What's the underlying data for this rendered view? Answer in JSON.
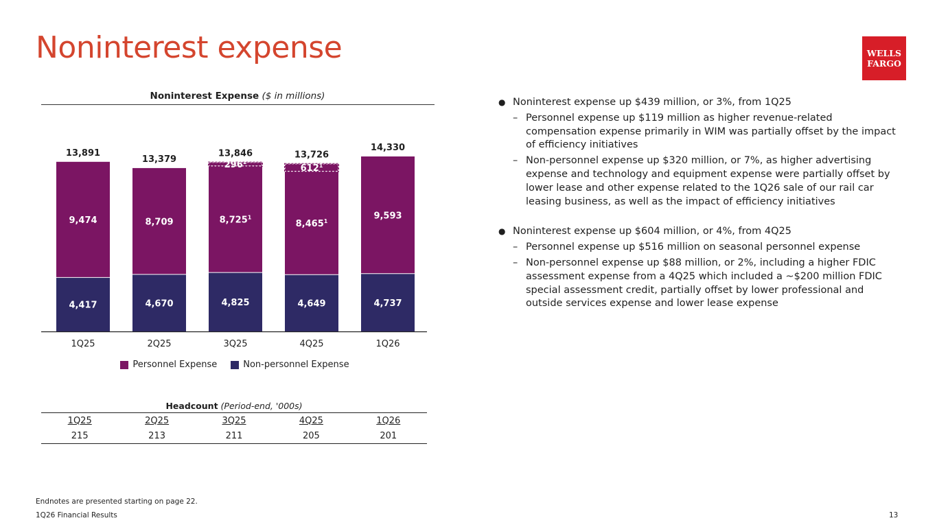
{
  "page": {
    "title": "Noninterest expense",
    "logo_line1": "WELLS",
    "logo_line2": "FARGO",
    "footnote": "Endnotes are presented starting on page 22.",
    "footer_left": "1Q26 Financial Results",
    "page_number": "13"
  },
  "colors": {
    "title": "#d4452e",
    "brand_red": "#d71e28",
    "personnel": "#7b1563",
    "nonpersonnel": "#2e2a65"
  },
  "chart_title_bold": "Noninterest Expense",
  "chart_title_italic": "($ in millions)",
  "chart_data": {
    "type": "bar",
    "stacked": true,
    "title": "Noninterest Expense ($ in millions)",
    "categories": [
      "1Q25",
      "2Q25",
      "3Q25",
      "4Q25",
      "1Q26"
    ],
    "series": [
      {
        "name": "Non-personnel Expense",
        "values": [
          4417,
          4670,
          4825,
          4649,
          4737
        ],
        "labels": [
          "4,417",
          "4,670",
          "4,825",
          "4,649",
          "4,737"
        ]
      },
      {
        "name": "Personnel Expense",
        "values": [
          9474,
          8709,
          8725,
          8465,
          9593
        ],
        "labels": [
          "9,474",
          "8,709",
          "8,725",
          "8,465",
          "9,593"
        ],
        "footnotes": [
          "",
          "",
          "1",
          "1",
          ""
        ]
      },
      {
        "name": "Dashed segment",
        "values": [
          0,
          0,
          296,
          612,
          0
        ],
        "labels": [
          "",
          "",
          "296",
          "612",
          ""
        ],
        "footnotes": [
          "",
          "",
          "1",
          "1",
          ""
        ]
      }
    ],
    "totals": [
      "13,891",
      "13,379",
      "13,846",
      "13,726",
      "14,330"
    ],
    "legend": [
      "Personnel Expense",
      "Non-personnel Expense"
    ],
    "ylim": [
      0,
      14330
    ]
  },
  "headcount": {
    "title_bold": "Headcount",
    "title_italic": "(Period-end, '000s)",
    "quarters": [
      "1Q25",
      "2Q25",
      "3Q25",
      "4Q25",
      "1Q26"
    ],
    "values": [
      "215",
      "213",
      "211",
      "205",
      "201"
    ]
  },
  "bullets": [
    {
      "text": "Noninterest expense up $439 million, or 3%, from 1Q25",
      "subs": [
        "Personnel expense up $119 million as higher revenue-related compensation expense primarily in WIM was partially offset by the impact of efficiency initiatives",
        "Non-personnel expense up $320 million, or 7%, as higher advertising expense and technology and equipment expense were partially offset by lower lease and other expense related to the 1Q26 sale of our rail car leasing business, as well as the impact of efficiency initiatives"
      ]
    },
    {
      "text": "Noninterest expense up $604 million, or 4%, from 4Q25",
      "subs": [
        "Personnel expense up $516 million on seasonal personnel expense",
        "Non-personnel expense up $88 million, or 2%, including a higher FDIC assessment expense from a 4Q25 which included a ~$200 million FDIC special assessment credit, partially offset by lower professional and outside services expense and lower lease expense"
      ]
    }
  ]
}
